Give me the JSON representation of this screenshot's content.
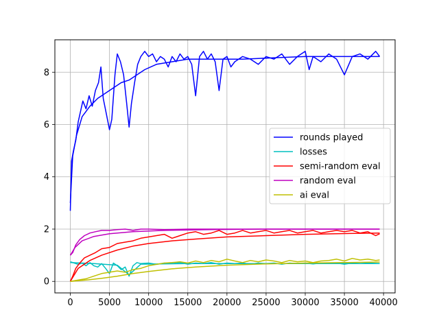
{
  "chart_data": {
    "type": "line",
    "title": "",
    "xlabel": "",
    "ylabel": "",
    "xlim": [
      -1975,
      41475
    ],
    "ylim": [
      -0.44,
      9.24
    ],
    "grid": true,
    "legend_position": "center-right",
    "x_ticks": [
      0,
      5000,
      10000,
      15000,
      20000,
      25000,
      30000,
      35000,
      40000
    ],
    "x_tick_labels": [
      "0",
      "5000",
      "10000",
      "15000",
      "20000",
      "25000",
      "30000",
      "35000",
      "40000"
    ],
    "y_ticks": [
      0,
      2,
      4,
      6,
      8
    ],
    "y_tick_labels": [
      "0",
      "2",
      "4",
      "6",
      "8"
    ],
    "series": [
      {
        "name": "rounds played",
        "color": "#0000ff",
        "points": [
          [
            0,
            2.7
          ],
          [
            150,
            4.6
          ],
          [
            400,
            5.0
          ],
          [
            700,
            5.4
          ],
          [
            1000,
            6.1
          ],
          [
            1300,
            6.5
          ],
          [
            1600,
            6.9
          ],
          [
            2000,
            6.6
          ],
          [
            2400,
            7.1
          ],
          [
            2800,
            6.7
          ],
          [
            3200,
            7.3
          ],
          [
            3600,
            7.6
          ],
          [
            3900,
            8.2
          ],
          [
            4200,
            7.0
          ],
          [
            4600,
            6.4
          ],
          [
            5000,
            5.8
          ],
          [
            5300,
            6.2
          ],
          [
            5700,
            7.9
          ],
          [
            6000,
            8.7
          ],
          [
            6400,
            8.4
          ],
          [
            6800,
            7.9
          ],
          [
            7200,
            6.8
          ],
          [
            7500,
            5.9
          ],
          [
            7800,
            6.8
          ],
          [
            8200,
            7.6
          ],
          [
            8600,
            8.3
          ],
          [
            9000,
            8.6
          ],
          [
            9500,
            8.8
          ],
          [
            10000,
            8.6
          ],
          [
            10500,
            8.7
          ],
          [
            11000,
            8.4
          ],
          [
            11500,
            8.6
          ],
          [
            12000,
            8.5
          ],
          [
            12500,
            8.2
          ],
          [
            13000,
            8.6
          ],
          [
            13500,
            8.4
          ],
          [
            14000,
            8.7
          ],
          [
            14500,
            8.5
          ],
          [
            15000,
            8.6
          ],
          [
            15500,
            8.3
          ],
          [
            16000,
            7.1
          ],
          [
            16500,
            8.6
          ],
          [
            17000,
            8.8
          ],
          [
            17500,
            8.5
          ],
          [
            18000,
            8.7
          ],
          [
            18500,
            8.4
          ],
          [
            19000,
            7.3
          ],
          [
            19500,
            8.5
          ],
          [
            20000,
            8.6
          ],
          [
            20500,
            8.2
          ],
          [
            21000,
            8.4
          ],
          [
            22000,
            8.6
          ],
          [
            23000,
            8.5
          ],
          [
            24000,
            8.3
          ],
          [
            25000,
            8.6
          ],
          [
            26000,
            8.5
          ],
          [
            27000,
            8.7
          ],
          [
            28000,
            8.3
          ],
          [
            29000,
            8.6
          ],
          [
            30000,
            8.8
          ],
          [
            30500,
            8.1
          ],
          [
            31000,
            8.6
          ],
          [
            32000,
            8.4
          ],
          [
            33000,
            8.7
          ],
          [
            34000,
            8.5
          ],
          [
            35000,
            7.9
          ],
          [
            36000,
            8.6
          ],
          [
            37000,
            8.7
          ],
          [
            38000,
            8.5
          ],
          [
            39000,
            8.8
          ],
          [
            39500,
            8.6
          ]
        ],
        "trend": [
          [
            0,
            3.0
          ],
          [
            300,
            4.8
          ],
          [
            800,
            5.6
          ],
          [
            1500,
            6.3
          ],
          [
            2500,
            6.7
          ],
          [
            3500,
            7.0
          ],
          [
            4500,
            7.2
          ],
          [
            5500,
            7.4
          ],
          [
            6500,
            7.6
          ],
          [
            7500,
            7.7
          ],
          [
            8500,
            7.9
          ],
          [
            9500,
            8.1
          ],
          [
            11000,
            8.3
          ],
          [
            13000,
            8.4
          ],
          [
            15000,
            8.5
          ],
          [
            18000,
            8.5
          ],
          [
            22000,
            8.5
          ],
          [
            26000,
            8.55
          ],
          [
            30000,
            8.6
          ],
          [
            35000,
            8.6
          ],
          [
            39500,
            8.6
          ]
        ]
      },
      {
        "name": "losses",
        "color": "#00bfbf",
        "points": [
          [
            0,
            0.75
          ],
          [
            500,
            0.7
          ],
          [
            1000,
            0.65
          ],
          [
            1500,
            0.7
          ],
          [
            2000,
            0.6
          ],
          [
            2500,
            0.72
          ],
          [
            3000,
            0.6
          ],
          [
            3500,
            0.55
          ],
          [
            4000,
            0.68
          ],
          [
            4500,
            0.5
          ],
          [
            5000,
            0.3
          ],
          [
            5500,
            0.7
          ],
          [
            6000,
            0.6
          ],
          [
            6500,
            0.45
          ],
          [
            7000,
            0.55
          ],
          [
            7500,
            0.2
          ],
          [
            8000,
            0.6
          ],
          [
            8500,
            0.72
          ],
          [
            9000,
            0.68
          ],
          [
            10000,
            0.7
          ],
          [
            11000,
            0.65
          ],
          [
            12000,
            0.7
          ],
          [
            13000,
            0.68
          ],
          [
            14000,
            0.72
          ],
          [
            15000,
            0.66
          ],
          [
            16000,
            0.7
          ],
          [
            17000,
            0.68
          ],
          [
            18000,
            0.72
          ],
          [
            19000,
            0.66
          ],
          [
            20000,
            0.7
          ],
          [
            21000,
            0.68
          ],
          [
            22000,
            0.7
          ],
          [
            23000,
            0.66
          ],
          [
            24000,
            0.7
          ],
          [
            25000,
            0.68
          ],
          [
            26000,
            0.7
          ],
          [
            27000,
            0.66
          ],
          [
            28000,
            0.7
          ],
          [
            29000,
            0.68
          ],
          [
            30000,
            0.7
          ],
          [
            31000,
            0.67
          ],
          [
            32000,
            0.7
          ],
          [
            33000,
            0.68
          ],
          [
            34000,
            0.7
          ],
          [
            35000,
            0.66
          ],
          [
            36000,
            0.7
          ],
          [
            37000,
            0.68
          ],
          [
            38000,
            0.7
          ],
          [
            39500,
            0.68
          ]
        ],
        "trend": [
          [
            0,
            0.72
          ],
          [
            3000,
            0.68
          ],
          [
            6000,
            0.62
          ],
          [
            7500,
            0.25
          ],
          [
            9000,
            0.66
          ],
          [
            15000,
            0.68
          ],
          [
            25000,
            0.68
          ],
          [
            39500,
            0.68
          ]
        ]
      },
      {
        "name": "semi-random eval",
        "color": "#ff0000",
        "points": [
          [
            0,
            0.0
          ],
          [
            300,
            0.2
          ],
          [
            700,
            0.5
          ],
          [
            1200,
            0.7
          ],
          [
            1800,
            0.9
          ],
          [
            2500,
            1.0
          ],
          [
            3200,
            1.1
          ],
          [
            4000,
            1.25
          ],
          [
            5000,
            1.3
          ],
          [
            6000,
            1.45
          ],
          [
            7000,
            1.5
          ],
          [
            8000,
            1.55
          ],
          [
            9000,
            1.65
          ],
          [
            10000,
            1.7
          ],
          [
            11000,
            1.75
          ],
          [
            12000,
            1.8
          ],
          [
            13000,
            1.65
          ],
          [
            14000,
            1.75
          ],
          [
            15000,
            1.85
          ],
          [
            16000,
            1.9
          ],
          [
            17000,
            1.8
          ],
          [
            18000,
            1.85
          ],
          [
            19000,
            1.95
          ],
          [
            20000,
            1.8
          ],
          [
            21000,
            1.85
          ],
          [
            22000,
            1.95
          ],
          [
            23000,
            1.85
          ],
          [
            24000,
            1.9
          ],
          [
            25000,
            1.95
          ],
          [
            26000,
            1.85
          ],
          [
            27000,
            1.9
          ],
          [
            28000,
            1.95
          ],
          [
            29000,
            1.85
          ],
          [
            30000,
            1.9
          ],
          [
            31000,
            1.95
          ],
          [
            32000,
            1.85
          ],
          [
            33000,
            1.9
          ],
          [
            34000,
            1.95
          ],
          [
            35000,
            1.9
          ],
          [
            36000,
            1.95
          ],
          [
            37000,
            1.85
          ],
          [
            38000,
            1.9
          ],
          [
            39000,
            1.75
          ],
          [
            39500,
            1.82
          ]
        ],
        "trend": [
          [
            0,
            0.0
          ],
          [
            1000,
            0.5
          ],
          [
            2500,
            0.8
          ],
          [
            4000,
            1.0
          ],
          [
            6000,
            1.2
          ],
          [
            8000,
            1.35
          ],
          [
            10000,
            1.45
          ],
          [
            13000,
            1.55
          ],
          [
            16000,
            1.62
          ],
          [
            20000,
            1.7
          ],
          [
            25000,
            1.75
          ],
          [
            30000,
            1.8
          ],
          [
            35000,
            1.83
          ],
          [
            39500,
            1.85
          ]
        ]
      },
      {
        "name": "random eval",
        "color": "#bf00bf",
        "points": [
          [
            0,
            1.0
          ],
          [
            300,
            1.1
          ],
          [
            700,
            1.4
          ],
          [
            1200,
            1.6
          ],
          [
            1800,
            1.75
          ],
          [
            2500,
            1.85
          ],
          [
            3200,
            1.9
          ],
          [
            4000,
            1.95
          ],
          [
            5000,
            1.95
          ],
          [
            6000,
            1.98
          ],
          [
            7000,
            2.0
          ],
          [
            8000,
            1.95
          ],
          [
            9000,
            2.0
          ],
          [
            10000,
            2.0
          ],
          [
            12000,
            1.98
          ],
          [
            15000,
            2.0
          ],
          [
            20000,
            2.0
          ],
          [
            25000,
            2.0
          ],
          [
            30000,
            2.0
          ],
          [
            35000,
            2.0
          ],
          [
            39500,
            2.0
          ]
        ],
        "trend": [
          [
            0,
            1.0
          ],
          [
            600,
            1.3
          ],
          [
            1500,
            1.55
          ],
          [
            3000,
            1.72
          ],
          [
            5000,
            1.82
          ],
          [
            8000,
            1.9
          ],
          [
            12000,
            1.95
          ],
          [
            18000,
            1.98
          ],
          [
            25000,
            2.0
          ],
          [
            39500,
            2.0
          ]
        ]
      },
      {
        "name": "ai eval",
        "color": "#bfbf00",
        "points": [
          [
            0,
            0.0
          ],
          [
            1000,
            0.05
          ],
          [
            2000,
            0.1
          ],
          [
            3000,
            0.2
          ],
          [
            4000,
            0.3
          ],
          [
            5000,
            0.35
          ],
          [
            6000,
            0.4
          ],
          [
            7000,
            0.35
          ],
          [
            8000,
            0.45
          ],
          [
            9000,
            0.5
          ],
          [
            10000,
            0.6
          ],
          [
            11000,
            0.65
          ],
          [
            12000,
            0.7
          ],
          [
            13000,
            0.72
          ],
          [
            14000,
            0.75
          ],
          [
            15000,
            0.7
          ],
          [
            16000,
            0.78
          ],
          [
            17000,
            0.72
          ],
          [
            18000,
            0.8
          ],
          [
            19000,
            0.75
          ],
          [
            20000,
            0.85
          ],
          [
            21000,
            0.78
          ],
          [
            22000,
            0.72
          ],
          [
            23000,
            0.8
          ],
          [
            24000,
            0.75
          ],
          [
            25000,
            0.82
          ],
          [
            26000,
            0.78
          ],
          [
            27000,
            0.72
          ],
          [
            28000,
            0.8
          ],
          [
            29000,
            0.75
          ],
          [
            30000,
            0.78
          ],
          [
            31000,
            0.72
          ],
          [
            32000,
            0.78
          ],
          [
            33000,
            0.8
          ],
          [
            34000,
            0.85
          ],
          [
            35000,
            0.78
          ],
          [
            36000,
            0.88
          ],
          [
            37000,
            0.82
          ],
          [
            38000,
            0.85
          ],
          [
            39000,
            0.8
          ],
          [
            39500,
            0.82
          ]
        ],
        "trend": [
          [
            0,
            0.0
          ],
          [
            2000,
            0.05
          ],
          [
            4000,
            0.12
          ],
          [
            6000,
            0.2
          ],
          [
            8000,
            0.3
          ],
          [
            10000,
            0.38
          ],
          [
            13000,
            0.48
          ],
          [
            16000,
            0.55
          ],
          [
            20000,
            0.62
          ],
          [
            25000,
            0.67
          ],
          [
            30000,
            0.7
          ],
          [
            35000,
            0.72
          ],
          [
            39500,
            0.74
          ]
        ]
      }
    ]
  }
}
